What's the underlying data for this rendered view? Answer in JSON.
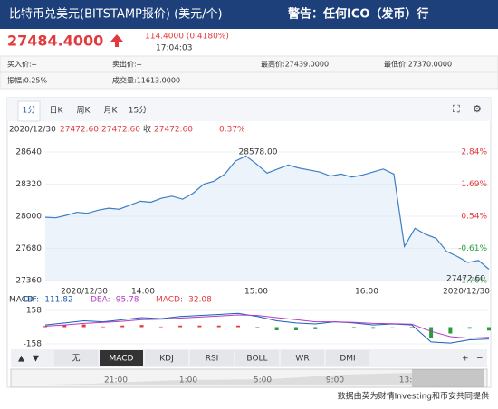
{
  "header": {
    "title": "比特币兑美元(BITSTAMP报价) (美元/个)",
    "warning": "警告：任何ICO（发币）行"
  },
  "quote": {
    "price": "27484.4000",
    "change": "114.4000 (0.4180%)",
    "time": "17:04:03"
  },
  "info": {
    "rows": [
      [
        "买入价:--",
        "卖出价:--",
        "最高价:27439.0000",
        "最低价:27370.0000"
      ],
      [
        "振幅:0.25%",
        "成交量:11613.0000"
      ]
    ]
  },
  "tabs": [
    "1分",
    "日K",
    "周K",
    "月K",
    "15分"
  ],
  "status_line": [
    "2020/12/30",
    "27472.60",
    "27472.60",
    "收",
    "27472.60",
    "0.37%"
  ],
  "chart": {
    "type": "line",
    "color": "#3c7fc4",
    "values": [
      27990,
      27985,
      28010,
      28040,
      28030,
      28060,
      28080,
      28070,
      28110,
      28150,
      28140,
      28180,
      28200,
      28170,
      28230,
      28320,
      28350,
      28420,
      28550,
      28600,
      28520,
      28430,
      28470,
      28510,
      28480,
      28460,
      28440,
      28400,
      28420,
      28390,
      28410,
      28440,
      28470,
      28420,
      27700,
      27880,
      27820,
      27780,
      27650,
      27600,
      27540,
      27560,
      27472.6
    ],
    "ylim": [
      27360,
      28640
    ],
    "yticks": [
      28640,
      28320,
      28000,
      27680,
      27360
    ],
    "y2lim": [
      -1.76,
      2.84
    ],
    "y2ticks": [
      {
        "value": 2.84,
        "label": "2.84%"
      },
      {
        "value": 1.69,
        "label": "1.69%"
      },
      {
        "value": 0.54,
        "label": "0.54%"
      },
      {
        "value": -0.61,
        "label": "-0.61%"
      },
      {
        "value": -1.76,
        "label": "-1.76%"
      }
    ],
    "x_labels": [
      "2020/12/30",
      "14:00",
      "15:00",
      "16:00",
      "2020/12/30"
    ],
    "annotations": [
      "28578.00",
      "27472.60"
    ]
  },
  "macd": {
    "label": "MACD",
    "dif_label": "DIF: -111.82",
    "dea_label": "DEA: -95.78",
    "macd_label": "MACD: -32.08",
    "ylim": [
      -158,
      158
    ],
    "yticks": [
      158,
      -158
    ],
    "dif": [
      20,
      40,
      60,
      50,
      70,
      90,
      80,
      100,
      110,
      120,
      130,
      100,
      60,
      40,
      30,
      50,
      40,
      20,
      30,
      20,
      -140,
      -150,
      -120,
      -111.82
    ],
    "dea": [
      10,
      20,
      35,
      45,
      55,
      70,
      75,
      85,
      95,
      105,
      115,
      110,
      90,
      70,
      50,
      50,
      45,
      35,
      32,
      28,
      -40,
      -90,
      -105,
      -95.78
    ],
    "hist": [
      10,
      20,
      25,
      5,
      15,
      20,
      5,
      15,
      15,
      15,
      15,
      -10,
      -30,
      -30,
      -20,
      0,
      -5,
      -15,
      -2,
      -8,
      -100,
      -60,
      -15,
      -32.08
    ]
  },
  "indicator_tabs": [
    "无",
    "MACD",
    "KDJ",
    "RSI",
    "BOLL",
    "WR",
    "DMI"
  ],
  "navigator": [
    "21:00",
    "1:00",
    "5:00",
    "9:00",
    "13:"
  ],
  "footer": "数据由英为财情Investing和币安共同提供"
}
